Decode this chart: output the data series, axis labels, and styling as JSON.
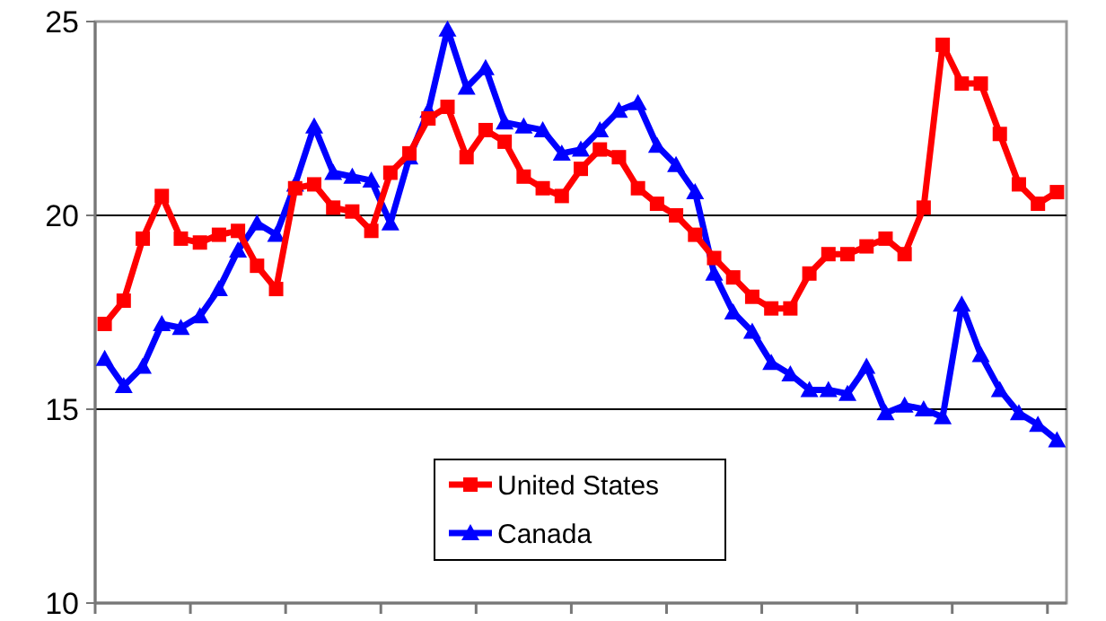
{
  "chart_data": {
    "type": "line",
    "categories": [
      null,
      null,
      null,
      null,
      null,
      null,
      null,
      null,
      null,
      null,
      null,
      null,
      null,
      null,
      null,
      null,
      null,
      null,
      null,
      null,
      null,
      null,
      null,
      null,
      null,
      null,
      null,
      null,
      null,
      null,
      null,
      null,
      null,
      null,
      null,
      null,
      null,
      null,
      null,
      null,
      null,
      null,
      null,
      null,
      null,
      null,
      null,
      null,
      null,
      null,
      null
    ],
    "series": [
      {
        "name": "United States",
        "color": "#ff0000",
        "marker": "square",
        "values": [
          17.2,
          17.8,
          19.4,
          20.5,
          19.4,
          19.3,
          19.5,
          19.6,
          18.7,
          18.1,
          20.7,
          20.8,
          20.2,
          20.1,
          19.6,
          21.1,
          21.6,
          22.5,
          22.8,
          21.5,
          22.2,
          21.9,
          21.0,
          20.7,
          20.5,
          21.2,
          21.7,
          21.5,
          20.7,
          20.3,
          20.0,
          19.5,
          18.9,
          18.4,
          17.9,
          17.6,
          17.6,
          18.5,
          19.0,
          19.0,
          19.2,
          19.4,
          19.0,
          20.2,
          24.4,
          23.4,
          23.4,
          22.1,
          20.8,
          20.3,
          20.6
        ]
      },
      {
        "name": "Canada",
        "color": "#0000ff",
        "marker": "triangle",
        "values": [
          16.3,
          15.6,
          16.1,
          17.2,
          17.1,
          17.4,
          18.1,
          19.1,
          19.8,
          19.5,
          20.8,
          22.3,
          21.1,
          21.0,
          20.9,
          19.8,
          21.5,
          22.7,
          24.8,
          23.3,
          23.8,
          22.4,
          22.3,
          22.2,
          21.6,
          21.7,
          22.2,
          22.7,
          22.9,
          21.8,
          21.3,
          20.6,
          18.5,
          17.5,
          17.0,
          16.2,
          15.9,
          15.5,
          15.5,
          15.4,
          16.1,
          14.9,
          15.1,
          15.0,
          14.8,
          17.7,
          16.4,
          15.5,
          14.9,
          14.6,
          14.2
        ]
      }
    ],
    "ylim": [
      10,
      25
    ],
    "yticks": [
      10,
      15,
      20,
      25
    ],
    "grid": "y",
    "legend": "bottom",
    "line_style": "solid"
  }
}
